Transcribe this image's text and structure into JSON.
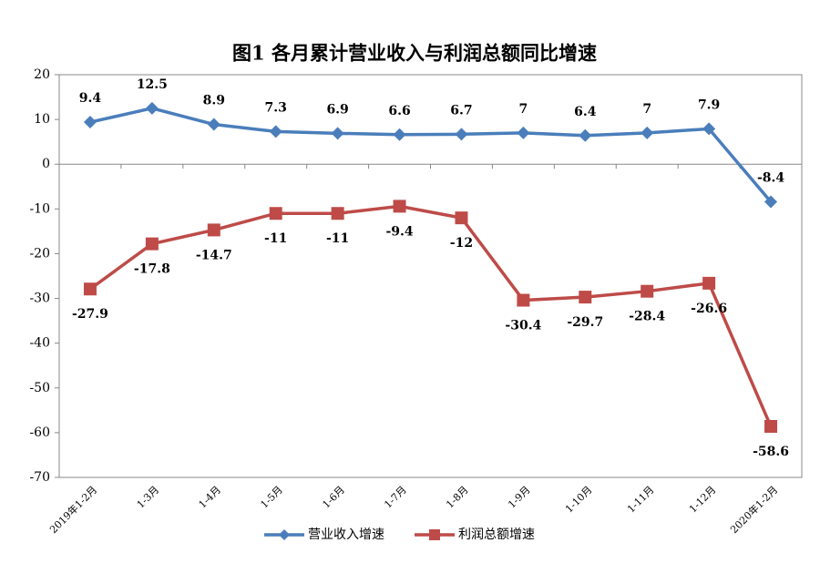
{
  "chart_data": {
    "type": "line",
    "title": "图1 各月累计营业收入与利润总额同比增速",
    "categories": [
      "2019年1-2月",
      "1-3月",
      "1-4月",
      "1-5月",
      "1-6月",
      "1-7月",
      "1-8月",
      "1-9月",
      "1-10月",
      "1-11月",
      "1-12月",
      "2020年1-2月"
    ],
    "series": [
      {
        "name": "营业收入增速",
        "color": "#4a7ebb",
        "marker": "diamond",
        "values": [
          9.4,
          12.5,
          8.9,
          7.3,
          6.9,
          6.6,
          6.7,
          7,
          6.4,
          7,
          7.9,
          -8.4
        ]
      },
      {
        "name": "利润总额增速",
        "color": "#be4b48",
        "marker": "square",
        "values": [
          -27.9,
          -17.8,
          -14.7,
          -11,
          -11,
          -9.4,
          -12,
          -30.4,
          -29.7,
          -28.4,
          -26.6,
          -58.6
        ]
      }
    ],
    "ylim": [
      -70,
      20
    ],
    "yticks": [
      20,
      10,
      0,
      -10,
      -20,
      -30,
      -40,
      -50,
      -60,
      -70
    ],
    "grid": false,
    "legend": "bottom"
  }
}
